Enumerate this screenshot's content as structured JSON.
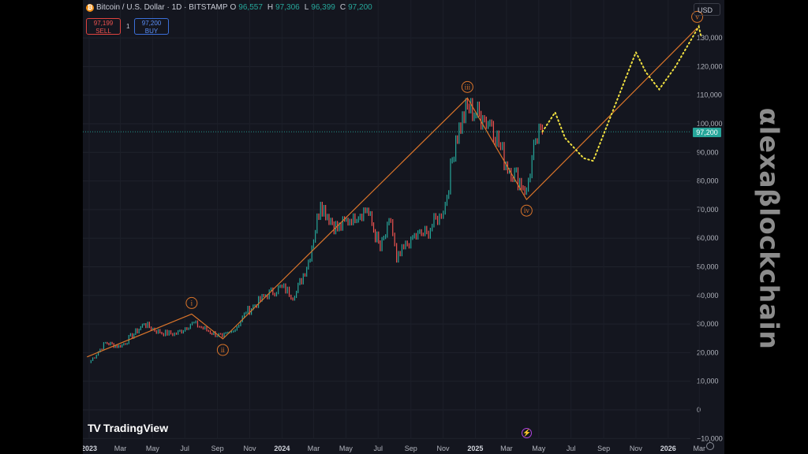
{
  "header": {
    "title": "Bitcoin / U.S. Dollar · 1D · BITSTAMP",
    "ohlc": [
      {
        "k": "O",
        "v": "96,557"
      },
      {
        "k": "H",
        "v": "97,306"
      },
      {
        "k": "L",
        "v": "96,399"
      },
      {
        "k": "C",
        "v": "97,200"
      }
    ],
    "sell_price": "97,199",
    "sell_label": "SELL",
    "spread": "1",
    "buy_price": "97,200",
    "buy_label": "BUY",
    "currency": "USD"
  },
  "branding": {
    "logo": "TradingView",
    "watermark": "αlexaβlockchain"
  },
  "colors": {
    "background": "#14161f",
    "up": "#26a69a",
    "down": "#ef5350",
    "wave": "#d9742a",
    "projection": "#f0e040",
    "price_line": "#26a69a"
  },
  "chart_data": {
    "type": "line",
    "title": "Bitcoin / U.S. Dollar · 1D · BITSTAMP",
    "xlabel": "",
    "ylabel": "",
    "x_ticks": [
      "2023",
      "Mar",
      "May",
      "Jul",
      "Sep",
      "Nov",
      "2024",
      "Mar",
      "May",
      "Jul",
      "Sep",
      "Nov",
      "2025",
      "Mar",
      "May",
      "Jul",
      "Sep",
      "Nov",
      "2026",
      "Mar"
    ],
    "y_ticks": [
      -10000,
      0,
      10000,
      20000,
      30000,
      40000,
      50000,
      60000,
      70000,
      80000,
      90000,
      100000,
      110000,
      120000,
      130000
    ],
    "y_tick_labels": [
      "−10,000",
      "0",
      "10,000",
      "20,000",
      "30,000",
      "40,000",
      "50,000",
      "60,000",
      "70,000",
      "80,000",
      "90,000",
      "100,000",
      "110,000",
      "120,000",
      "130,000"
    ],
    "ylim": [
      -10000,
      137000
    ],
    "current_price": 97200,
    "current_price_label": "97,200",
    "price_series": {
      "name": "",
      "x": [
        "2023-01-01",
        "2023-02-01",
        "2023-03-01",
        "2023-04-15",
        "2023-05-15",
        "2023-06-15",
        "2023-07-15",
        "2023-08-15",
        "2023-09-10",
        "2023-10-01",
        "2023-10-25",
        "2023-12-01",
        "2024-01-01",
        "2024-01-25",
        "2024-02-20",
        "2024-03-14",
        "2024-04-15",
        "2024-05-15",
        "2024-06-10",
        "2024-07-05",
        "2024-07-25",
        "2024-08-05",
        "2024-09-01",
        "2024-10-01",
        "2024-10-25",
        "2024-11-05",
        "2024-11-25",
        "2024-12-17",
        "2025-01-15",
        "2025-02-01",
        "2025-02-28",
        "2025-04-08",
        "2025-04-25",
        "2025-05-08"
      ],
      "y": [
        16500,
        23500,
        22000,
        30000,
        27000,
        26500,
        30500,
        27500,
        25500,
        27500,
        34000,
        40000,
        43000,
        39500,
        52000,
        72000,
        63000,
        68000,
        70000,
        56000,
        66000,
        52000,
        60000,
        62000,
        68000,
        72000,
        95000,
        106000,
        102000,
        100000,
        86000,
        77000,
        94000,
        97200
      ]
    },
    "wave_labels": [
      "i",
      "ii",
      "iii",
      "iv",
      "v"
    ],
    "wave_path": {
      "x": [
        "2022-12-28",
        "2023-07-14",
        "2023-09-11",
        "2024-12-17",
        "2025-04-08",
        "2026-02-25"
      ],
      "y": [
        18500,
        33500,
        24800,
        109000,
        73500,
        133500
      ]
    },
    "projection": {
      "x": [
        "2025-05-08",
        "2025-06-01",
        "2025-06-20",
        "2025-07-25",
        "2025-08-12",
        "2025-11-01",
        "2025-11-20",
        "2025-12-15",
        "2026-01-15",
        "2026-02-28",
        "2026-03-05"
      ],
      "y": [
        97200,
        104000,
        95000,
        88000,
        87000,
        125000,
        118000,
        112000,
        120000,
        134000,
        130000
      ]
    }
  }
}
